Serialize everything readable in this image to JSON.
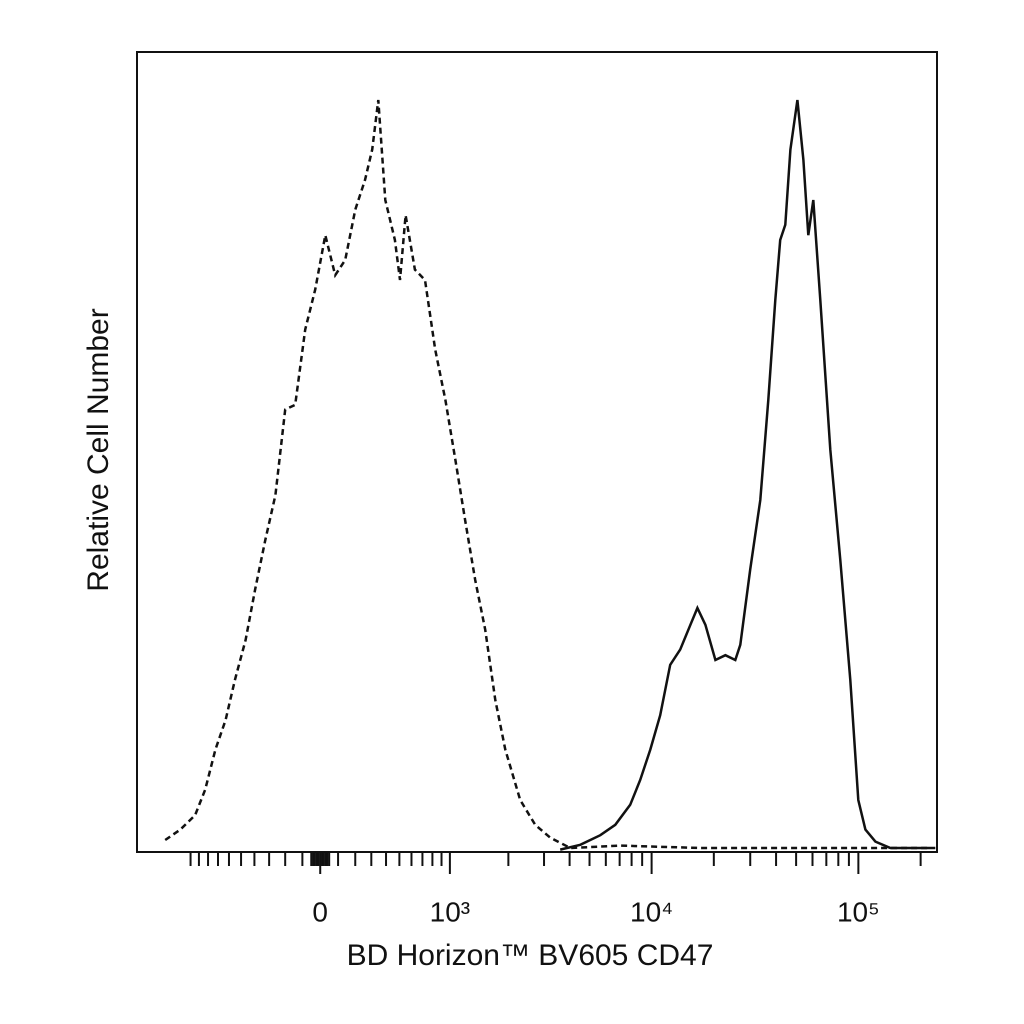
{
  "chart_data": {
    "type": "histogram-overlay",
    "xlabel": "BD Horizon™ BV605 CD47",
    "ylabel": "Relative Cell Number",
    "xscale": "biexponential",
    "xlim": [
      -1890,
      240000
    ],
    "ylim": [
      0,
      100
    ],
    "xticks": [
      0,
      {
        "value": 1000,
        "label": "10³"
      },
      {
        "value": 10000,
        "label": "10⁴"
      },
      {
        "value": 100000,
        "label": "10⁵"
      }
    ],
    "xminorticks": [
      -1000,
      -900,
      -800,
      -700,
      -600,
      -500,
      -400,
      -300,
      -200,
      -100,
      -50,
      -40,
      -30,
      -20,
      -10,
      10,
      20,
      30,
      40,
      50,
      100,
      200,
      300,
      400,
      500,
      600,
      700,
      800,
      900,
      2000,
      3000,
      4000,
      5000,
      6000,
      7000,
      8000,
      9000,
      20000,
      30000,
      40000,
      50000,
      60000,
      70000,
      80000,
      90000,
      200000
    ],
    "series": [
      {
        "line_style": "dashed",
        "color": "#111111",
        "x": [
          -1360,
          -1135,
          -945,
          -830,
          -725,
          -630,
          -550,
          -465,
          -395,
          -325,
          -260,
          -200,
          -141,
          -84,
          -28,
          28,
          84,
          141,
          200,
          260,
          306,
          346,
          395,
          465,
          505,
          550,
          630,
          725,
          830,
          945,
          1070,
          1205,
          1360,
          1530,
          1720,
          1930,
          2290,
          2715,
          3215,
          4030,
          7050,
          17200,
          52400,
          222500
        ],
        "values": [
          1.5,
          2.8,
          4.6,
          7.8,
          12.8,
          16.5,
          21.5,
          26.5,
          32.8,
          39,
          44.6,
          55.3,
          55.9,
          65.3,
          70.3,
          77.1,
          72.1,
          74,
          80.3,
          84,
          87.8,
          94,
          81.5,
          76.5,
          71.5,
          79.6,
          72.8,
          71.5,
          62.8,
          56.5,
          49,
          41.5,
          34,
          27.8,
          19,
          12.8,
          6.5,
          3.4,
          1.8,
          0.5,
          0.8,
          0.5,
          0.5,
          0.5
        ]
      },
      {
        "line_style": "solid",
        "color": "#111111",
        "x": [
          3600,
          4510,
          5640,
          6670,
          7880,
          8810,
          9850,
          11000,
          12300,
          13750,
          15400,
          16650,
          18200,
          20350,
          22750,
          25400,
          26850,
          30000,
          33550,
          36700,
          39650,
          41900,
          44350,
          46900,
          50700,
          54200,
          57250,
          60550,
          65450,
          73150,
          81800,
          91450,
          99950,
          108100,
          120850,
          142800,
          235500
        ],
        "values": [
          0.3,
          0.9,
          2.1,
          3.4,
          5.9,
          9,
          12.8,
          17.1,
          23.4,
          25.3,
          28.4,
          30.5,
          28.4,
          24,
          24.6,
          24,
          25.9,
          35.3,
          44,
          56.5,
          69,
          76.5,
          78.4,
          87.8,
          94,
          86.5,
          77.1,
          81.5,
          69,
          50.3,
          36.5,
          21.5,
          6.5,
          2.8,
          1.3,
          0.5,
          0.5
        ]
      }
    ]
  }
}
